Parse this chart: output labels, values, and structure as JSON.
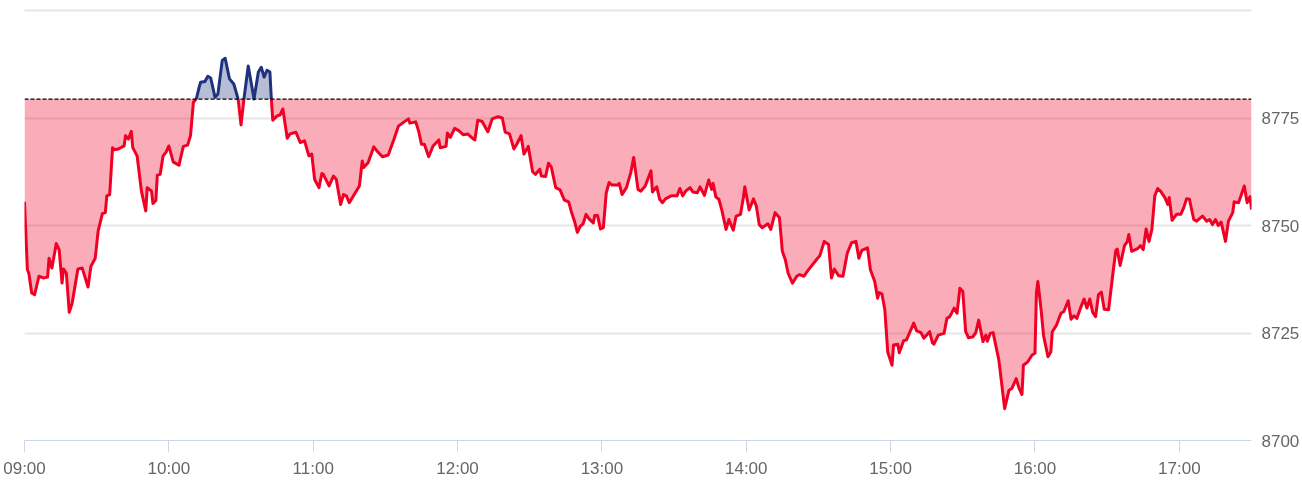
{
  "chart_data": {
    "type": "line",
    "xlim": [
      9,
      17.5
    ],
    "xticks": [
      {
        "value": 9,
        "label": "09:00"
      },
      {
        "value": 10,
        "label": "10:00"
      },
      {
        "value": 11,
        "label": "11:00"
      },
      {
        "value": 12,
        "label": "12:00"
      },
      {
        "value": 13,
        "label": "13:00"
      },
      {
        "value": 14,
        "label": "14:00"
      },
      {
        "value": 15,
        "label": "15:00"
      },
      {
        "value": 16,
        "label": "16:00"
      },
      {
        "value": 17,
        "label": "17:00"
      }
    ],
    "ylim": [
      8700,
      8800
    ],
    "yticks": [
      8700,
      8725,
      8750,
      8775,
      {
        "value": 8800,
        "label": null
      }
    ],
    "grid": "y",
    "ref_lines": [
      {
        "axis": "y",
        "value": 8779.4,
        "color": "#000000",
        "line_style": "dashed"
      }
    ],
    "series": [
      {
        "color": "#f00024",
        "x": [
          9.0,
          9.02,
          9.03,
          9.05,
          9.07,
          9.1,
          9.13,
          9.16,
          9.17,
          9.19,
          9.22,
          9.24,
          9.26,
          9.27,
          9.29,
          9.31,
          9.33,
          9.37,
          9.4,
          9.44,
          9.46,
          9.49,
          9.51,
          9.54,
          9.56,
          9.57,
          9.59,
          9.61,
          9.62,
          9.65,
          9.69,
          9.7,
          9.72,
          9.74,
          9.75,
          9.78,
          9.81,
          9.84,
          9.85,
          9.88,
          9.89,
          9.91,
          9.92,
          9.94,
          9.96,
          9.98,
          10.0,
          10.03,
          10.07,
          10.1,
          10.13,
          10.15,
          10.17,
          10.19,
          10.3,
          10.48,
          10.5,
          10.52,
          10.6,
          10.71,
          10.72,
          10.75,
          10.77,
          10.79,
          10.82,
          10.84,
          10.88,
          10.91,
          10.94,
          10.97,
          10.99,
          11.01,
          11.04,
          11.06,
          11.07,
          11.11,
          11.14,
          11.16,
          11.19,
          11.21,
          11.23,
          11.25,
          11.28,
          11.32,
          11.34,
          11.35,
          11.38,
          11.42,
          11.44,
          11.48,
          11.52,
          11.56,
          11.59,
          11.63,
          11.66,
          11.67,
          11.71,
          11.73,
          11.75,
          11.77,
          11.8,
          11.83,
          11.87,
          11.88,
          11.92,
          11.93,
          11.95,
          11.98,
          12.01,
          12.04,
          12.07,
          12.11,
          12.12,
          12.14,
          12.17,
          12.21,
          12.24,
          12.28,
          12.31,
          12.33,
          12.36,
          12.39,
          12.41,
          12.44,
          12.46,
          12.49,
          12.52,
          12.54,
          12.57,
          12.58,
          12.61,
          12.63,
          12.65,
          12.68,
          12.71,
          12.74,
          12.77,
          12.79,
          12.81,
          12.83,
          12.85,
          12.87,
          12.89,
          12.91,
          12.94,
          12.95,
          12.97,
          12.99,
          13.01,
          13.03,
          13.05,
          13.07,
          13.11,
          13.12,
          13.14,
          13.17,
          13.2,
          13.22,
          13.25,
          13.27,
          13.3,
          13.34,
          13.35,
          13.38,
          13.4,
          13.42,
          13.44,
          13.48,
          13.52,
          13.54,
          13.56,
          13.58,
          13.61,
          13.63,
          13.66,
          13.68,
          13.71,
          13.74,
          13.76,
          13.77,
          13.79,
          13.81,
          13.83,
          13.86,
          13.88,
          13.91,
          13.93,
          13.96,
          13.98,
          13.99,
          14.02,
          14.05,
          14.07,
          14.09,
          14.11,
          14.15,
          14.17,
          14.2,
          14.23,
          14.25,
          14.27,
          14.29,
          14.32,
          14.35,
          14.37,
          14.4,
          14.42,
          14.44,
          14.49,
          14.51,
          14.54,
          14.57,
          14.59,
          14.61,
          14.64,
          14.67,
          14.7,
          14.73,
          14.76,
          14.78,
          14.8,
          14.84,
          14.86,
          14.89,
          14.91,
          14.92,
          14.94,
          14.96,
          14.98,
          15.01,
          15.02,
          15.05,
          15.06,
          15.09,
          15.11,
          15.16,
          15.18,
          15.21,
          15.23,
          15.27,
          15.29,
          15.3,
          15.33,
          15.37,
          15.39,
          15.41,
          15.44,
          15.46,
          15.48,
          15.5,
          15.52,
          15.54,
          15.57,
          15.59,
          15.61,
          15.64,
          15.66,
          15.67,
          15.69,
          15.71,
          15.75,
          15.79,
          15.82,
          15.84,
          15.87,
          15.89,
          15.91,
          15.92,
          15.95,
          15.98,
          16.0,
          16.01,
          16.02,
          16.04,
          16.06,
          16.09,
          16.11,
          16.12,
          16.15,
          16.18,
          16.2,
          16.23,
          16.25,
          16.27,
          16.29,
          16.32,
          16.34,
          16.36,
          16.38,
          16.4,
          16.42,
          16.44,
          16.46,
          16.48,
          16.51,
          16.54,
          16.56,
          16.57,
          16.59,
          16.62,
          16.64,
          16.65,
          16.67,
          16.71,
          16.73,
          16.75,
          16.77,
          16.79,
          16.81,
          16.83,
          16.85,
          16.87,
          16.9,
          16.92,
          16.93,
          16.95,
          16.98,
          17.01,
          17.03,
          17.05,
          17.07,
          17.1,
          17.12,
          17.16,
          17.19,
          17.21,
          17.23,
          17.25,
          17.27,
          17.29,
          17.32,
          17.34,
          17.37,
          17.38,
          17.41,
          17.43,
          17.45,
          17.47,
          17.49,
          17.5
        ],
        "values": [
          8755.5,
          8739.7,
          8738.9,
          8734.3,
          8733.9,
          8738.2,
          8737.8,
          8738.0,
          8742.4,
          8740.1,
          8745.8,
          8744.4,
          8736.6,
          8739.9,
          8738.9,
          8729.8,
          8731.9,
          8739.9,
          8740.1,
          8735.7,
          8740.5,
          8742.4,
          8748.7,
          8752.8,
          8753.0,
          8756.9,
          8757.2,
          8768.1,
          8767.6,
          8767.8,
          8768.5,
          8770.9,
          8770.1,
          8771.9,
          8768.1,
          8766.2,
          8758.0,
          8753.4,
          8758.8,
          8758.0,
          8755.1,
          8755.8,
          8761.7,
          8761.9,
          8766.2,
          8767.0,
          8768.5,
          8764.8,
          8764.0,
          8768.4,
          8768.7,
          8770.9,
          8778.7,
          8779.4,
          null,
          8779.4,
          8773.4,
          8779.4,
          null,
          8779.4,
          8774.5,
          8775.5,
          8775.7,
          8777.1,
          8770.3,
          8771.3,
          8771.7,
          8769.3,
          8769.7,
          8766.2,
          8766.6,
          8760.7,
          8758.8,
          8762.1,
          8761.9,
          8759.2,
          8761.5,
          8760.7,
          8754.9,
          8757.2,
          8756.9,
          8755.3,
          8757.0,
          8759.2,
          8765.0,
          8763.5,
          8764.6,
          8768.3,
          8767.4,
          8766.0,
          8766.4,
          8770.1,
          8773.1,
          8774.1,
          8774.8,
          8773.8,
          8774.1,
          8772.0,
          8768.9,
          8768.9,
          8766.0,
          8768.5,
          8769.9,
          8768.1,
          8768.4,
          8771.5,
          8770.5,
          8772.6,
          8772.0,
          8771.1,
          8771.3,
          8770.1,
          8769.9,
          8774.5,
          8774.2,
          8771.8,
          8774.8,
          8775.3,
          8775.0,
          8771.7,
          8771.3,
          8767.8,
          8768.9,
          8770.9,
          8766.6,
          8768.4,
          8762.5,
          8761.9,
          8763.1,
          8761.5,
          8761.4,
          8764.5,
          8763.5,
          8758.8,
          8758.3,
          8755.9,
          8755.5,
          8753.0,
          8751.0,
          8748.4,
          8749.8,
          8750.4,
          8752.6,
          8751.6,
          8750.6,
          8752.3,
          8752.3,
          8749.2,
          8749.5,
          8757.6,
          8760.0,
          8759.4,
          8759.4,
          8759.8,
          8757.2,
          8758.8,
          8762.3,
          8765.8,
          8758.4,
          8758.0,
          8759.2,
          8762.7,
          8757.8,
          8759.0,
          8756.1,
          8755.3,
          8756.2,
          8756.9,
          8756.9,
          8758.6,
          8756.9,
          8758.0,
          8758.8,
          8757.8,
          8757.6,
          8759.0,
          8757.0,
          8760.6,
          8758.4,
          8759.8,
          8756.6,
          8756.1,
          8753.7,
          8749.1,
          8751.4,
          8748.9,
          8752.2,
          8752.6,
          8756.5,
          8759.0,
          8753.6,
          8756.2,
          8754.5,
          8750.2,
          8749.5,
          8750.4,
          8749.1,
          8753.0,
          8751.8,
          8744.0,
          8742.1,
          8738.9,
          8736.6,
          8738.2,
          8738.6,
          8738.2,
          8739.2,
          8740.1,
          8742.2,
          8743.0,
          8746.3,
          8745.6,
          8737.8,
          8739.9,
          8738.3,
          8738.2,
          8743.6,
          8746.0,
          8746.3,
          8742.4,
          8744.2,
          8744.8,
          8739.7,
          8737.0,
          8733.1,
          8734.4,
          8734.1,
          8730.4,
          8720.6,
          8717.5,
          8722.2,
          8722.4,
          8720.4,
          8723.2,
          8723.4,
          8727.3,
          8725.5,
          8725.1,
          8723.8,
          8725.3,
          8722.7,
          8722.4,
          8724.5,
          8724.9,
          8728.4,
          8728.8,
          8730.8,
          8729.6,
          8735.4,
          8734.7,
          8725.3,
          8723.9,
          8724.1,
          8725.1,
          8728.0,
          8723.0,
          8724.5,
          8723.1,
          8724.9,
          8725.1,
          8718.7,
          8707.4,
          8711.7,
          8712.1,
          8714.4,
          8712.1,
          8710.7,
          8717.5,
          8718.3,
          8719.9,
          8720.3,
          8734.3,
          8737.0,
          8731.2,
          8724.3,
          8719.5,
          8720.6,
          8725.3,
          8726.9,
          8729.6,
          8730.0,
          8732.5,
          8728.2,
          8729.0,
          8728.4,
          8731.2,
          8732.9,
          8730.8,
          8732.9,
          8729.8,
          8728.8,
          8733.9,
          8734.5,
          8730.5,
          8730.4,
          8738.9,
          8744.2,
          8744.5,
          8740.7,
          8745.3,
          8746.3,
          8747.9,
          8744.0,
          8744.6,
          8745.3,
          8744.4,
          8749.2,
          8746.3,
          8749.1,
          8756.9,
          8758.6,
          8758.0,
          8756.5,
          8754.9,
          8756.5,
          8751.2,
          8752.6,
          8752.6,
          8754.1,
          8756.2,
          8756.1,
          8751.4,
          8751.0,
          8752.2,
          8751.0,
          8751.4,
          8750.2,
          8751.4,
          8750.0,
          8750.8,
          8746.3,
          8751.0,
          8753.0,
          8755.5,
          8755.3,
          8757.2,
          8759.2,
          8755.3,
          8756.7,
          8753.7
        ],
        "lower": [
          8755.5,
          8739.7,
          8738.9,
          8734.3,
          8733.9,
          8738.2,
          8737.8,
          8738.0,
          8742.4,
          8740.1,
          8745.8,
          8744.4,
          8736.6,
          8739.9,
          8738.9,
          8729.8,
          8731.9,
          8739.9,
          8740.1,
          8735.7,
          8740.5,
          8742.4,
          8748.7,
          8752.8,
          8753.0,
          8756.9,
          8757.2,
          8768.1,
          8767.6,
          8767.8,
          8768.5,
          8770.9,
          8770.1,
          8771.9,
          8768.1,
          8766.2,
          8758.0,
          8753.4,
          8758.8,
          8758.0,
          8755.1,
          8755.8,
          8761.7,
          8761.9,
          8766.2,
          8767.0,
          8768.5,
          8764.8,
          8764.0,
          8768.4,
          8768.7,
          8770.9,
          8778.7,
          8779.4,
          8779.4,
          8779.4,
          8773.4,
          8779.4,
          8779.4,
          8779.4,
          8774.5,
          8775.5,
          8775.7,
          8777.1,
          8770.3,
          8771.3,
          8771.7,
          8769.3,
          8769.7,
          8766.2,
          8766.6,
          8760.7,
          8758.8,
          8762.1,
          8761.9,
          8759.2,
          8761.5,
          8760.7,
          8754.9,
          8757.2,
          8756.9,
          8755.3,
          8757.0,
          8759.2,
          8765.0,
          8763.5,
          8764.6,
          8768.3,
          8767.4,
          8766.0,
          8766.4,
          8770.1,
          8773.1,
          8774.1,
          8774.8,
          8773.8,
          8774.1,
          8772.0,
          8768.9,
          8768.9,
          8766.0,
          8768.5,
          8769.9,
          8768.1,
          8768.4,
          8771.5,
          8770.5,
          8772.6,
          8772.0,
          8771.1,
          8771.3,
          8770.1,
          8769.9,
          8774.5,
          8774.2,
          8771.8,
          8774.8,
          8775.3,
          8775.0,
          8771.7,
          8771.3,
          8767.8,
          8768.9,
          8770.9,
          8766.6,
          8768.4,
          8762.5,
          8761.9,
          8763.1,
          8761.5,
          8761.4,
          8764.5,
          8763.5,
          8758.8,
          8758.3,
          8755.9,
          8755.5,
          8753.0,
          8751.0,
          8748.4,
          8749.8,
          8750.4,
          8752.6,
          8751.6,
          8750.6,
          8752.3,
          8752.3,
          8749.2,
          8749.5,
          8757.6,
          8760.0,
          8759.4,
          8759.4,
          8759.8,
          8757.2,
          8758.8,
          8762.3,
          8765.8,
          8758.4,
          8758.0,
          8759.2,
          8762.7,
          8757.8,
          8759.0,
          8756.1,
          8755.3,
          8756.2,
          8756.9,
          8756.9,
          8758.6,
          8756.9,
          8758.0,
          8758.8,
          8757.8,
          8757.6,
          8759.0,
          8757.0,
          8760.6,
          8758.4,
          8759.8,
          8756.6,
          8756.1,
          8753.7,
          8749.1,
          8751.4,
          8748.9,
          8752.2,
          8752.6,
          8756.5,
          8759.0,
          8753.6,
          8756.2,
          8754.5,
          8750.2,
          8749.5,
          8750.4,
          8749.1,
          8753.0,
          8751.8,
          8744.0,
          8742.1,
          8738.9,
          8736.6,
          8738.2,
          8738.6,
          8738.2,
          8739.2,
          8740.1,
          8742.2,
          8743.0,
          8746.3,
          8745.6,
          8737.8,
          8739.9,
          8738.3,
          8738.2,
          8743.6,
          8746.0,
          8746.3,
          8742.4,
          8744.2,
          8744.8,
          8739.7,
          8737.0,
          8733.1,
          8734.4,
          8734.1,
          8730.4,
          8720.6,
          8717.5,
          8722.2,
          8722.4,
          8720.4,
          8723.2,
          8723.4,
          8727.3,
          8725.5,
          8725.1,
          8723.8,
          8725.3,
          8722.7,
          8722.4,
          8724.5,
          8724.9,
          8728.4,
          8728.8,
          8730.8,
          8729.6,
          8735.4,
          8734.7,
          8725.3,
          8723.9,
          8724.1,
          8725.1,
          8728.0,
          8723.0,
          8724.5,
          8723.1,
          8724.9,
          8725.1,
          8718.7,
          8707.4,
          8711.7,
          8712.1,
          8714.4,
          8712.1,
          8710.7,
          8717.5,
          8718.3,
          8719.9,
          8720.3,
          8734.3,
          8737.0,
          8731.2,
          8724.3,
          8719.5,
          8720.6,
          8725.3,
          8726.9,
          8729.6,
          8730.0,
          8732.5,
          8728.2,
          8729.0,
          8728.4,
          8731.2,
          8732.9,
          8730.8,
          8732.9,
          8729.8,
          8728.8,
          8733.9,
          8734.5,
          8730.5,
          8730.4,
          8738.9,
          8744.2,
          8744.5,
          8740.7,
          8745.3,
          8746.3,
          8747.9,
          8744.0,
          8744.6,
          8745.3,
          8744.4,
          8749.2,
          8746.3,
          8749.1,
          8756.9,
          8758.6,
          8758.0,
          8756.5,
          8754.9,
          8756.5,
          8751.2,
          8752.6,
          8752.6,
          8754.1,
          8756.2,
          8756.1,
          8751.4,
          8751.0,
          8752.2,
          8751.0,
          8751.4,
          8750.2,
          8751.4,
          8750.0,
          8750.8,
          8746.3,
          8751.0,
          8753.0,
          8755.5,
          8755.3,
          8757.2,
          8759.2,
          8755.3,
          8756.7,
          8753.7
        ],
        "upper": [
          8779.4,
          8779.4,
          8779.4,
          8779.4,
          8779.4,
          8779.4,
          8779.4,
          8779.4,
          8779.4,
          8779.4,
          8779.4,
          8779.4,
          8779.4,
          8779.4,
          8779.4,
          8779.4,
          8779.4,
          8779.4,
          8779.4,
          8779.4,
          8779.4,
          8779.4,
          8779.4,
          8779.4,
          8779.4,
          8779.4,
          8779.4,
          8779.4,
          8779.4,
          8779.4,
          8779.4,
          8779.4,
          8779.4,
          8779.4,
          8779.4,
          8779.4,
          8779.4,
          8779.4,
          8779.4,
          8779.4,
          8779.4,
          8779.4,
          8779.4,
          8779.4,
          8779.4,
          8779.4,
          8779.4,
          8779.4,
          8779.4,
          8779.4,
          8779.4,
          8779.4,
          8779.4,
          8779.4,
          8779.4,
          8779.4,
          8779.4,
          8779.4,
          8779.4,
          8779.4,
          8779.4,
          8779.4,
          8779.4,
          8779.4,
          8779.4,
          8779.4,
          8779.4,
          8779.4,
          8779.4,
          8779.4,
          8779.4,
          8779.4,
          8779.4,
          8779.4,
          8779.4,
          8779.4,
          8779.4,
          8779.4,
          8779.4,
          8779.4,
          8779.4,
          8779.4,
          8779.4,
          8779.4,
          8779.4,
          8779.4,
          8779.4,
          8779.4,
          8779.4,
          8779.4,
          8779.4,
          8779.4,
          8779.4,
          8779.4,
          8779.4,
          8779.4,
          8779.4,
          8779.4,
          8779.4,
          8779.4,
          8779.4,
          8779.4,
          8779.4,
          8779.4,
          8779.4,
          8779.4,
          8779.4,
          8779.4,
          8779.4,
          8779.4,
          8779.4,
          8779.4,
          8779.4,
          8779.4,
          8779.4,
          8779.4,
          8779.4,
          8779.4,
          8779.4,
          8779.4,
          8779.4,
          8779.4,
          8779.4,
          8779.4,
          8779.4,
          8779.4,
          8779.4,
          8779.4,
          8779.4,
          8779.4,
          8779.4,
          8779.4,
          8779.4,
          8779.4,
          8779.4,
          8779.4,
          8779.4,
          8779.4,
          8779.4,
          8779.4,
          8779.4,
          8779.4,
          8779.4,
          8779.4,
          8779.4,
          8779.4,
          8779.4,
          8779.4,
          8779.4,
          8779.4,
          8779.4,
          8779.4,
          8779.4,
          8779.4,
          8779.4,
          8779.4,
          8779.4,
          8779.4,
          8779.4,
          8779.4,
          8779.4,
          8779.4,
          8779.4,
          8779.4,
          8779.4,
          8779.4,
          8779.4,
          8779.4,
          8779.4,
          8779.4,
          8779.4,
          8779.4,
          8779.4,
          8779.4,
          8779.4,
          8779.4,
          8779.4,
          8779.4,
          8779.4,
          8779.4,
          8779.4,
          8779.4,
          8779.4,
          8779.4,
          8779.4,
          8779.4,
          8779.4,
          8779.4,
          8779.4,
          8779.4,
          8779.4,
          8779.4,
          8779.4,
          8779.4,
          8779.4,
          8779.4,
          8779.4,
          8779.4,
          8779.4,
          8779.4,
          8779.4,
          8779.4,
          8779.4,
          8779.4,
          8779.4,
          8779.4,
          8779.4,
          8779.4,
          8779.4,
          8779.4,
          8779.4,
          8779.4,
          8779.4,
          8779.4,
          8779.4,
          8779.4,
          8779.4,
          8779.4,
          8779.4,
          8779.4,
          8779.4,
          8779.4,
          8779.4,
          8779.4,
          8779.4,
          8779.4,
          8779.4,
          8779.4,
          8779.4,
          8779.4,
          8779.4,
          8779.4,
          8779.4,
          8779.4,
          8779.4,
          8779.4,
          8779.4,
          8779.4,
          8779.4,
          8779.4,
          8779.4,
          8779.4,
          8779.4,
          8779.4,
          8779.4,
          8779.4,
          8779.4,
          8779.4,
          8779.4,
          8779.4,
          8779.4,
          8779.4,
          8779.4,
          8779.4,
          8779.4,
          8779.4,
          8779.4,
          8779.4,
          8779.4,
          8779.4,
          8779.4,
          8779.4,
          8779.4,
          8779.4,
          8779.4,
          8779.4,
          8779.4,
          8779.4,
          8779.4,
          8779.4,
          8779.4,
          8779.4,
          8779.4,
          8779.4,
          8779.4,
          8779.4,
          8779.4,
          8779.4,
          8779.4,
          8779.4,
          8779.4,
          8779.4,
          8779.4,
          8779.4,
          8779.4,
          8779.4,
          8779.4,
          8779.4,
          8779.4,
          8779.4,
          8779.4,
          8779.4,
          8779.4,
          8779.4,
          8779.4,
          8779.4,
          8779.4,
          8779.4,
          8779.4,
          8779.4,
          8779.4,
          8779.4,
          8779.4,
          8779.4,
          8779.4,
          8779.4,
          8779.4,
          8779.4,
          8779.4,
          8779.4,
          8779.4,
          8779.4,
          8779.4,
          8779.4,
          8779.4,
          8779.4,
          8779.4,
          8779.4,
          8779.4,
          8779.4,
          8779.4,
          8779.4,
          8779.4,
          8779.4,
          8779.4,
          8779.4,
          8779.4,
          8779.4,
          8779.4,
          8779.4,
          8779.4,
          8779.4,
          8779.4,
          8779.4,
          8779.4,
          8779.4,
          8779.4,
          8779.4,
          8779.4,
          8779.4
        ]
      },
      {
        "color": "#1f327d",
        "x": [
          10.19,
          10.21,
          10.22,
          10.25,
          10.27,
          10.29,
          10.32,
          10.34,
          10.37,
          10.39,
          10.42,
          10.45,
          10.48,
          10.5,
          10.52,
          10.55,
          10.59,
          10.62,
          10.64,
          10.66,
          10.68,
          10.7,
          10.71
        ],
        "values": [
          8779.4,
          8782.2,
          8783.3,
          8783.5,
          8784.7,
          8784.3,
          8779.8,
          8780.6,
          8788.4,
          8788.9,
          8784.1,
          8782.9,
          8779.4,
          null,
          8779.4,
          8787.1,
          8779.4,
          8785.7,
          8786.8,
          8784.5,
          8786.1,
          8785.7,
          8779.4
        ],
        "lower": [
          8779.4,
          8779.4,
          8779.4,
          8779.4,
          8779.4,
          8779.4,
          8779.4,
          8779.4,
          8779.4,
          8779.4,
          8779.4,
          8779.4,
          8779.4,
          8779.4,
          8779.4,
          8779.4,
          8779.4,
          8779.4,
          8779.4,
          8779.4,
          8779.4,
          8779.4,
          8779.4
        ],
        "upper": [
          8779.4,
          8782.2,
          8783.3,
          8783.5,
          8784.7,
          8784.3,
          8779.8,
          8780.6,
          8788.4,
          8788.9,
          8784.1,
          8782.9,
          8779.4,
          8779.4,
          8779.4,
          8787.1,
          8779.4,
          8785.7,
          8786.8,
          8784.5,
          8786.1,
          8785.7,
          8779.4
        ]
      }
    ]
  }
}
